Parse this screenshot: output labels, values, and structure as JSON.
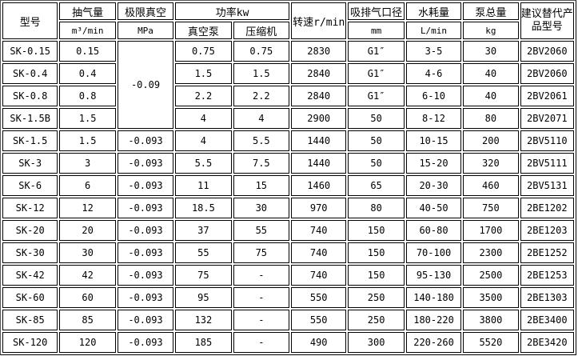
{
  "header": {
    "model": "型号",
    "airflow": "抽气量",
    "airflow_unit": "m³/min",
    "vacuum": "极限真空",
    "vacuum_unit": "MPa",
    "power": "功率kw",
    "power_pump": "真空泵",
    "power_compressor": "压缩机",
    "speed": "转速r/min",
    "port": "吸排气口径",
    "port_unit": "mm",
    "water": "水耗量",
    "water_unit": "L/min",
    "weight": "泵总量",
    "weight_unit": "kg",
    "replacement": "建议替代产品型号"
  },
  "merged_vacuum": "-0.09",
  "rows": [
    {
      "model": "SK-0.15",
      "airflow": "0.15",
      "vacuum": "",
      "pump": "0.75",
      "compressor": "0.75",
      "speed": "2830",
      "port": "G1″",
      "water": "3-5",
      "weight": "30",
      "replacement": "2BV2060"
    },
    {
      "model": "SK-0.4",
      "airflow": "0.4",
      "vacuum": "",
      "pump": "1.5",
      "compressor": "1.5",
      "speed": "2840",
      "port": "G1″",
      "water": "4-6",
      "weight": "40",
      "replacement": "2BV2060"
    },
    {
      "model": "SK-0.8",
      "airflow": "0.8",
      "vacuum": "",
      "pump": "2.2",
      "compressor": "2.2",
      "speed": "2840",
      "port": "G1″",
      "water": "6-10",
      "weight": "40",
      "replacement": "2BV2061"
    },
    {
      "model": "SK-1.5B",
      "airflow": "1.5",
      "vacuum": "",
      "pump": "4",
      "compressor": "4",
      "speed": "2900",
      "port": "50",
      "water": "8-12",
      "weight": "80",
      "replacement": "2BV2071"
    },
    {
      "model": "SK-1.5",
      "airflow": "1.5",
      "vacuum": "-0.093",
      "pump": "4",
      "compressor": "5.5",
      "speed": "1440",
      "port": "50",
      "water": "10-15",
      "weight": "200",
      "replacement": "2BV5110"
    },
    {
      "model": "SK-3",
      "airflow": "3",
      "vacuum": "-0.093",
      "pump": "5.5",
      "compressor": "7.5",
      "speed": "1440",
      "port": "50",
      "water": "15-20",
      "weight": "320",
      "replacement": "2BV5111"
    },
    {
      "model": "SK-6",
      "airflow": "6",
      "vacuum": "-0.093",
      "pump": "11",
      "compressor": "15",
      "speed": "1460",
      "port": "65",
      "water": "20-30",
      "weight": "460",
      "replacement": "2BV5131"
    },
    {
      "model": "SK-12",
      "airflow": "12",
      "vacuum": "-0.093",
      "pump": "18.5",
      "compressor": "30",
      "speed": "970",
      "port": "80",
      "water": "40-50",
      "weight": "750",
      "replacement": "2BE1202"
    },
    {
      "model": "SK-20",
      "airflow": "20",
      "vacuum": "-0.093",
      "pump": "37",
      "compressor": "55",
      "speed": "740",
      "port": "150",
      "water": "60-80",
      "weight": "1700",
      "replacement": "2BE1203"
    },
    {
      "model": "SK-30",
      "airflow": "30",
      "vacuum": "-0.093",
      "pump": "55",
      "compressor": "75",
      "speed": "740",
      "port": "150",
      "water": "70-100",
      "weight": "2300",
      "replacement": "2BE1252"
    },
    {
      "model": "SK-42",
      "airflow": "42",
      "vacuum": "-0.093",
      "pump": "75",
      "compressor": "-",
      "speed": "740",
      "port": "150",
      "water": "95-130",
      "weight": "2500",
      "replacement": "2BE1253"
    },
    {
      "model": "SK-60",
      "airflow": "60",
      "vacuum": "-0.093",
      "pump": "95",
      "compressor": "-",
      "speed": "550",
      "port": "250",
      "water": "140-180",
      "weight": "3500",
      "replacement": "2BE1303"
    },
    {
      "model": "SK-85",
      "airflow": "85",
      "vacuum": "-0.093",
      "pump": "132",
      "compressor": "-",
      "speed": "550",
      "port": "250",
      "water": "180-220",
      "weight": "3800",
      "replacement": "2BE3400"
    },
    {
      "model": "SK-120",
      "airflow": "120",
      "vacuum": "-0.093",
      "pump": "185",
      "compressor": "-",
      "speed": "490",
      "port": "300",
      "water": "220-260",
      "weight": "5520",
      "replacement": "2BE3420"
    }
  ]
}
